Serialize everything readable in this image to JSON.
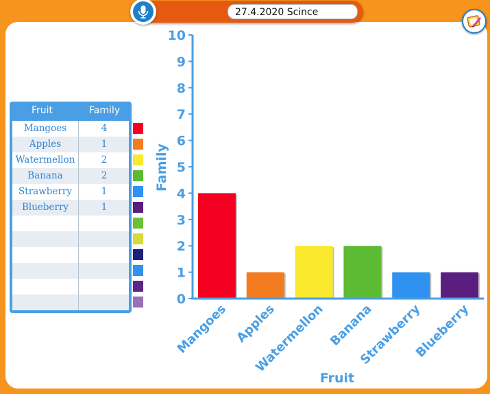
{
  "header": {
    "title_value": "27.4.2020 Scince",
    "icons": {
      "mic": "microphone-icon",
      "corner": "drawing-tools-icon"
    }
  },
  "table": {
    "headers": [
      "Fruit",
      "Family"
    ],
    "rows": [
      {
        "fruit": "Mangoes",
        "family": "4"
      },
      {
        "fruit": "Apples",
        "family": "1"
      },
      {
        "fruit": "Watermellon",
        "family": "2"
      },
      {
        "fruit": "Banana",
        "family": "2"
      },
      {
        "fruit": "Strawberry",
        "family": "1"
      },
      {
        "fruit": "Blueberry",
        "family": "1"
      },
      {
        "fruit": "",
        "family": ""
      },
      {
        "fruit": "",
        "family": ""
      },
      {
        "fruit": "",
        "family": ""
      },
      {
        "fruit": "",
        "family": ""
      },
      {
        "fruit": "",
        "family": ""
      },
      {
        "fruit": "",
        "family": ""
      }
    ],
    "swatch_colors": [
      "#f40021",
      "#f47c20",
      "#fbe92e",
      "#5dbb33",
      "#2f92f0",
      "#5a1e7f",
      "#6ebf35",
      "#d6da3b",
      "#1f2079",
      "#3191ee",
      "#5c2688",
      "#9a6fb6"
    ]
  },
  "colors": {
    "background": "#f7941d",
    "axis": "#4a9fe4",
    "text": "#2e86d3",
    "row_alt": "#e7edf3"
  },
  "chart_data": {
    "type": "bar",
    "categories": [
      "Mangoes",
      "Apples",
      "Watermellon",
      "Banana",
      "Strawberry",
      "Blueberry"
    ],
    "values": [
      4,
      1,
      2,
      2,
      1,
      1
    ],
    "colors": [
      "#f40021",
      "#f47c20",
      "#fbe92e",
      "#5dbb33",
      "#2f92f0",
      "#5a1e7f"
    ],
    "xlabel": "Fruit",
    "ylabel": "Family",
    "ylim": [
      0,
      10
    ],
    "yticks": [
      "0",
      "1",
      "2",
      "3",
      "4",
      "5",
      "6",
      "7",
      "8",
      "9",
      "10"
    ],
    "grid": false
  }
}
